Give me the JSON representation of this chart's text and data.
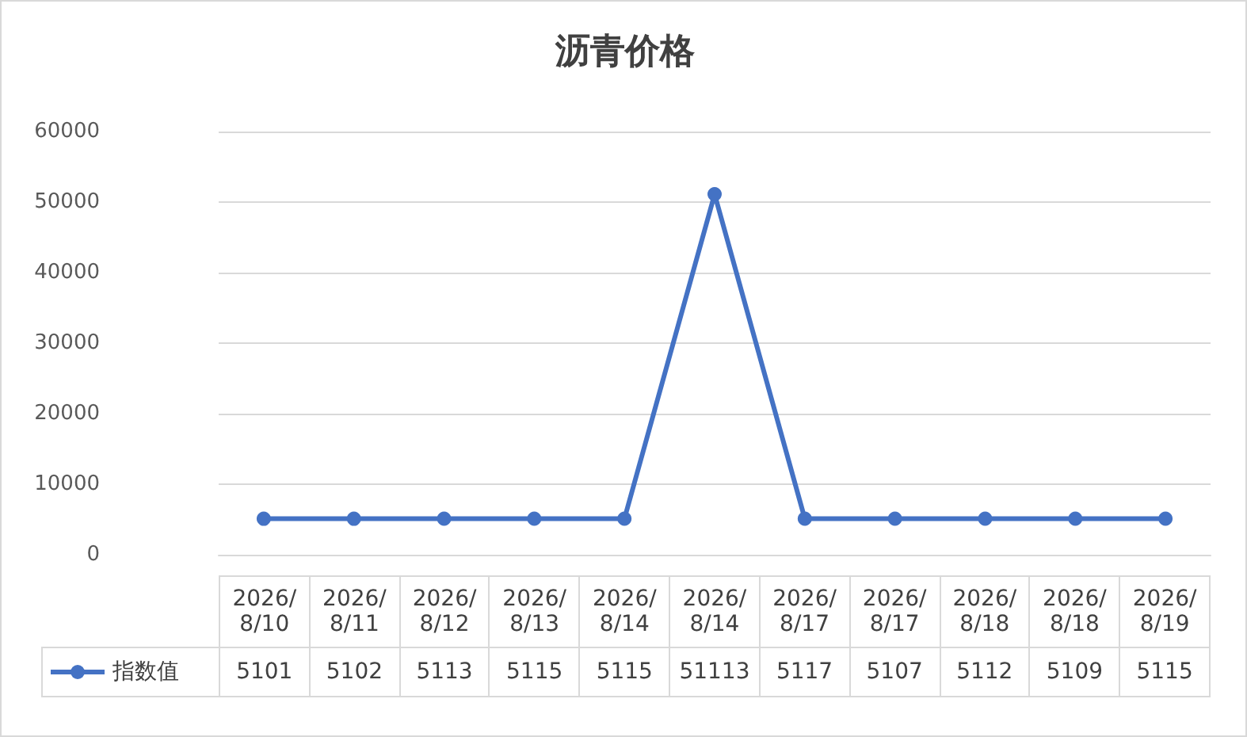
{
  "chart_data": {
    "type": "line",
    "title": "沥青价格",
    "categories": [
      "2026/8/10",
      "2026/8/11",
      "2026/8/12",
      "2026/8/13",
      "2026/8/14",
      "2026/8/14",
      "2026/8/17",
      "2026/8/17",
      "2026/8/18",
      "2026/8/18",
      "2026/8/19"
    ],
    "series": [
      {
        "name": "指数值",
        "color": "#4472c4",
        "values": [
          5101,
          5102,
          5113,
          5115,
          5115,
          51113,
          5117,
          5107,
          5112,
          5109,
          5115
        ]
      }
    ],
    "ylim": [
      0,
      60000
    ],
    "yticks": [
      0,
      10000,
      20000,
      30000,
      40000,
      50000,
      60000
    ],
    "grid": "y",
    "legend": "bottom",
    "marker": "circle",
    "line_style": "solid",
    "data_labels": true
  }
}
